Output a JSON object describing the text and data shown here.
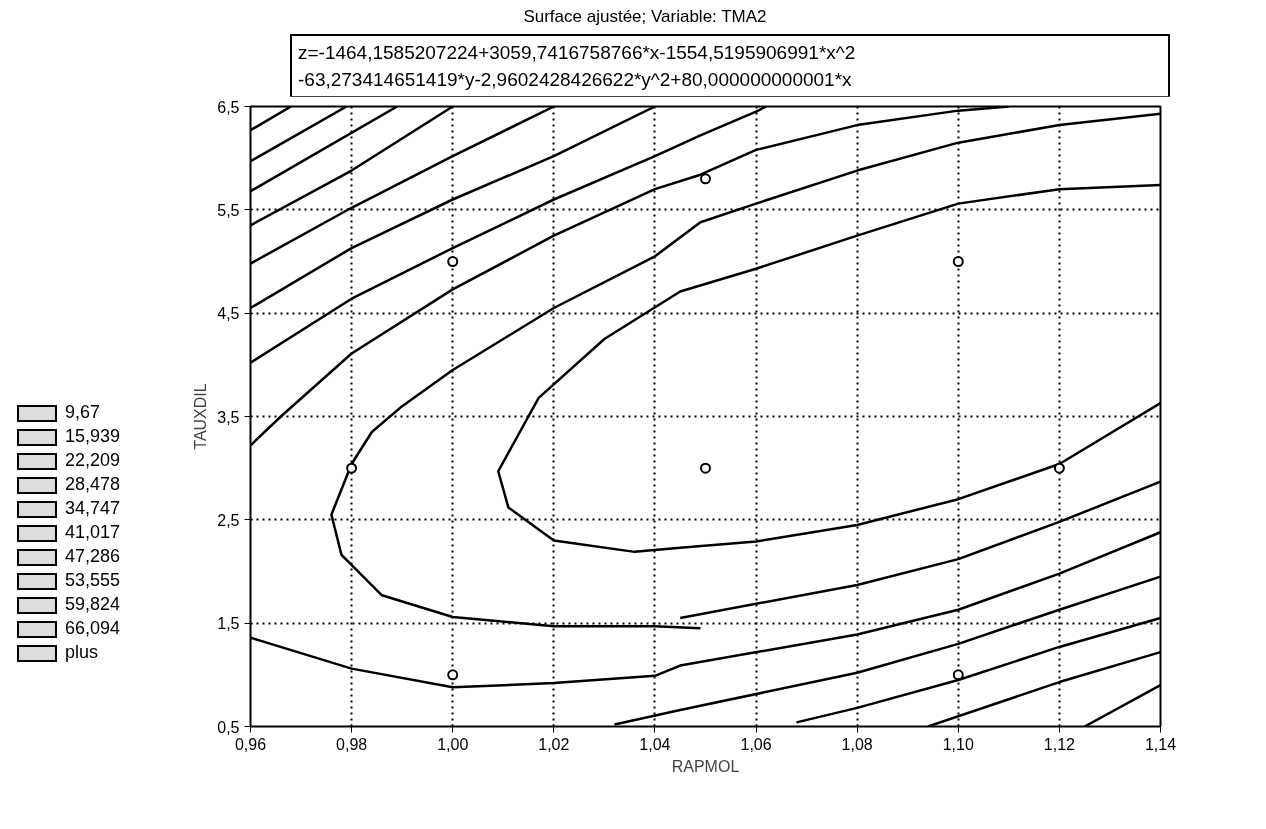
{
  "chart_data": {
    "type": "line",
    "title": "Surface ajustée; Variable: TMA2",
    "subtitle": "z=-1464,1585207224+3059,7416758766*x-1554,5195906991*x^2\n-63,273414651419*y-2,9602428426622*y^2+80,000000000001*x",
    "xlabel": "RAPMOL",
    "ylabel": "TAUXDIL",
    "annotations": [
      "9,67",
      "15,939",
      "22,209",
      "28,478",
      "34,747",
      "41,017",
      "47,286",
      "53,555",
      "59,824",
      "66,094",
      "plus"
    ],
    "xlim": [
      0.96,
      1.14
    ],
    "ylim": [
      0.5,
      6.5
    ],
    "xticks": [
      {
        "value": 0.96,
        "label": "0,96"
      },
      {
        "value": 0.98,
        "label": "0,98"
      },
      {
        "value": 1.0,
        "label": "1,00"
      },
      {
        "value": 1.02,
        "label": "1,02"
      },
      {
        "value": 1.04,
        "label": "1,04"
      },
      {
        "value": 1.06,
        "label": "1,06"
      },
      {
        "value": 1.08,
        "label": "1,08"
      },
      {
        "value": 1.1,
        "label": "1,10"
      },
      {
        "value": 1.12,
        "label": "1,12"
      },
      {
        "value": 1.14,
        "label": "1,14"
      }
    ],
    "yticks": [
      {
        "value": 0.5,
        "label": "0,5"
      },
      {
        "value": 1.5,
        "label": "1,5"
      },
      {
        "value": 2.5,
        "label": "2,5"
      },
      {
        "value": 3.5,
        "label": "3,5"
      },
      {
        "value": 4.5,
        "label": "4,5"
      },
      {
        "value": 5.5,
        "label": "5,5"
      },
      {
        "value": 6.5,
        "label": "6,5"
      }
    ],
    "grid": true,
    "series": [
      {
        "color": "#000000",
        "x": [
          0.96,
          0.968
        ],
        "values": [
          6.27,
          6.5
        ]
      },
      {
        "type": "line",
        "color": "#000000",
        "x": [
          0.96,
          0.979
        ],
        "values": [
          5.97,
          6.5
        ]
      },
      {
        "type": "line",
        "color": "#000000",
        "x": [
          0.96,
          0.989
        ],
        "values": [
          5.68,
          6.5
        ]
      },
      {
        "type": "line",
        "color": "#000000",
        "x": [
          0.96,
          0.98,
          1.0
        ],
        "values": [
          5.35,
          5.88,
          6.5
        ]
      },
      {
        "type": "line",
        "color": "#000000",
        "x": [
          0.96,
          0.98,
          1.0,
          1.02
        ],
        "values": [
          4.98,
          5.52,
          6.02,
          6.5
        ]
      },
      {
        "type": "line",
        "color": "#000000",
        "x": [
          0.96,
          0.98,
          1.0,
          1.02,
          1.04
        ],
        "values": [
          4.55,
          5.13,
          5.6,
          6.02,
          6.5
        ]
      },
      {
        "type": "line",
        "color": "#000000",
        "x": [
          0.96,
          0.98,
          1.0,
          1.02,
          1.04,
          1.049,
          1.06,
          1.062
        ],
        "values": [
          4.02,
          4.64,
          5.13,
          5.6,
          6.02,
          6.22,
          6.45,
          6.5
        ]
      },
      {
        "type": "line",
        "color": "#000000",
        "x": [
          0.96,
          0.966,
          0.98,
          1.0,
          1.02,
          1.04,
          1.049,
          1.06,
          1.08,
          1.1,
          1.11
        ],
        "values": [
          3.22,
          3.5,
          4.11,
          4.73,
          5.25,
          5.7,
          5.84,
          6.08,
          6.32,
          6.46,
          6.5
        ]
      },
      {
        "type": "line",
        "color": "#000000",
        "x": [
          1.049,
          1.04,
          1.02,
          1.0,
          0.986,
          0.978,
          0.976,
          0.98,
          0.984,
          0.99,
          1.0,
          1.02,
          1.04,
          1.049,
          1.06,
          1.08,
          1.1,
          1.12,
          1.14
        ],
        "values": [
          1.45,
          1.47,
          1.47,
          1.56,
          1.77,
          2.16,
          2.55,
          3.04,
          3.35,
          3.6,
          3.95,
          4.55,
          5.05,
          5.38,
          5.56,
          5.88,
          6.15,
          6.32,
          6.43
        ]
      },
      {
        "type": "line",
        "color": "#000000",
        "x": [
          1.045,
          1.08,
          1.1,
          1.12,
          1.14
        ],
        "values": [
          1.55,
          1.87,
          2.12,
          2.48,
          2.87
        ]
      },
      {
        "type": "line",
        "color": "#000000",
        "x": [
          1.14,
          1.12,
          1.1,
          1.08,
          1.06,
          1.045,
          1.036,
          1.02,
          1.011,
          1.009,
          1.017,
          1.03,
          1.045,
          1.06,
          1.08,
          1.1,
          1.12,
          1.14
        ],
        "values": [
          3.63,
          3.04,
          2.7,
          2.45,
          2.29,
          2.23,
          2.19,
          2.3,
          2.62,
          2.97,
          3.68,
          4.25,
          4.71,
          4.93,
          5.25,
          5.56,
          5.7,
          5.74
        ]
      },
      {
        "type": "line",
        "color": "#000000",
        "x": [
          0.96,
          0.98,
          1.0,
          1.02,
          1.04,
          1.045,
          1.08,
          1.1,
          1.12,
          1.14
        ],
        "values": [
          1.36,
          1.06,
          0.88,
          0.92,
          0.99,
          1.09,
          1.39,
          1.63,
          1.98,
          2.38
        ]
      },
      {
        "type": "line",
        "color": "#000000",
        "x": [
          1.032,
          1.045,
          1.08,
          1.1,
          1.12,
          1.14
        ],
        "values": [
          0.52,
          0.66,
          1.02,
          1.3,
          1.63,
          1.95
        ]
      },
      {
        "type": "line",
        "color": "#000000",
        "x": [
          1.068,
          1.08,
          1.1,
          1.12,
          1.14
        ],
        "values": [
          0.54,
          0.68,
          0.95,
          1.27,
          1.55
        ]
      },
      {
        "type": "line",
        "color": "#000000",
        "x": [
          1.094,
          1.12,
          1.14
        ],
        "values": [
          0.5,
          0.93,
          1.22
        ]
      },
      {
        "type": "line",
        "color": "#000000",
        "x": [
          1.125,
          1.14
        ],
        "values": [
          0.5,
          0.9
        ]
      },
      {
        "type": "scatter",
        "marker": "circle",
        "color": "#000000",
        "x": [
          0.98,
          1.0,
          1.0,
          1.05,
          1.05,
          1.1,
          1.1,
          1.12
        ],
        "values": [
          3.0,
          5.0,
          1.0,
          5.8,
          3.0,
          5.0,
          1.0,
          3.0
        ]
      }
    ]
  }
}
